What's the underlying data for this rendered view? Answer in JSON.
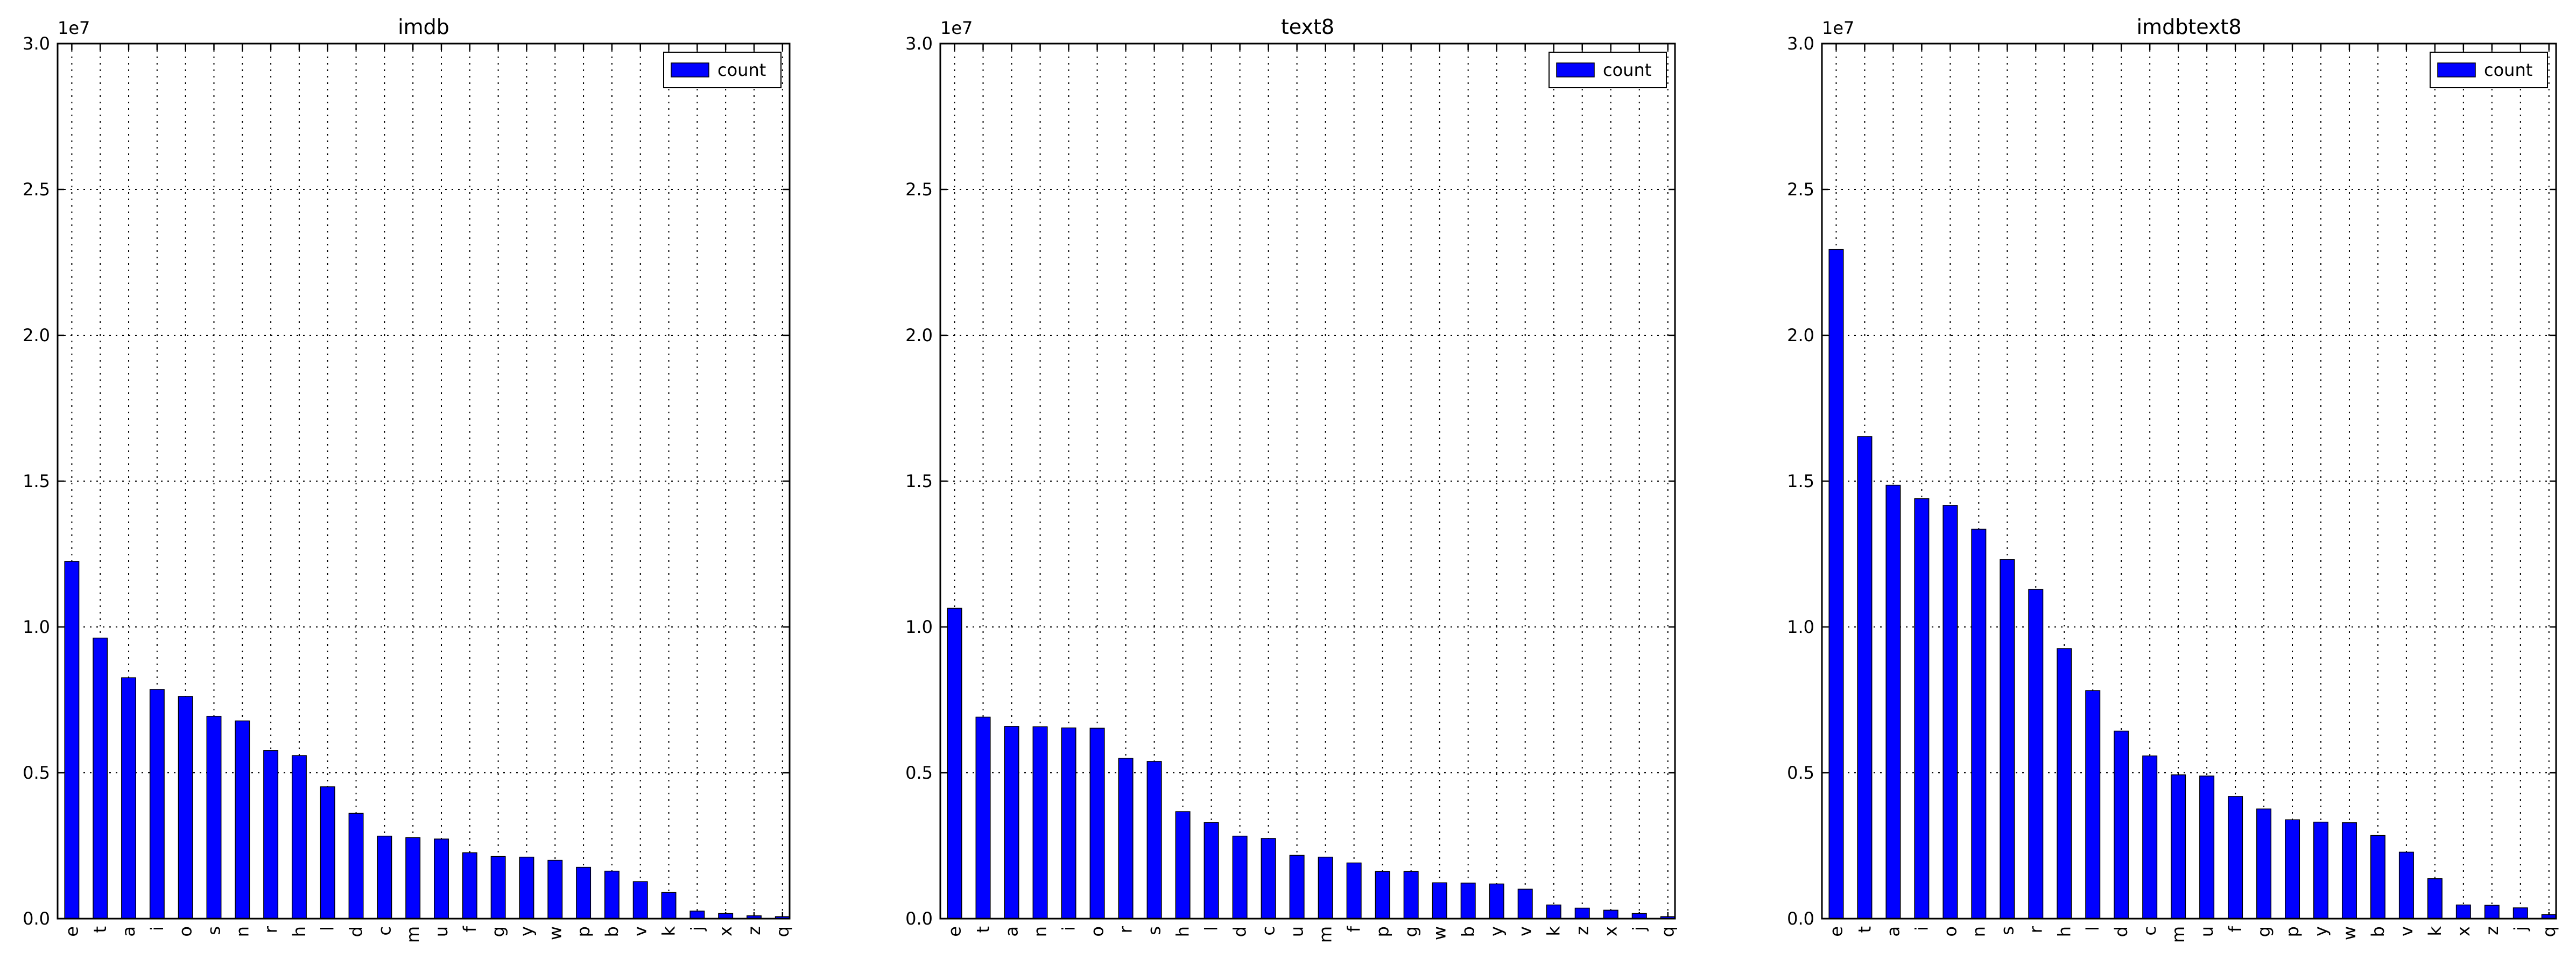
{
  "chart_data": [
    {
      "type": "bar",
      "title": "imdb",
      "y_offset_label": "1e7",
      "y_ticks": [
        0.0,
        0.5,
        1.0,
        1.5,
        2.0,
        2.5,
        3.0
      ],
      "y_tick_labels": [
        "0.0",
        "0.5",
        "1.0",
        "1.5",
        "2.0",
        "2.5",
        "3.0"
      ],
      "ylim": [
        0,
        30000000
      ],
      "grid": true,
      "legend": {
        "position": "top-right"
      },
      "categories": [
        "e",
        "t",
        "a",
        "i",
        "o",
        "s",
        "n",
        "r",
        "h",
        "l",
        "d",
        "c",
        "m",
        "u",
        "f",
        "g",
        "y",
        "w",
        "p",
        "b",
        "v",
        "k",
        "j",
        "x",
        "z",
        "q"
      ],
      "series": [
        {
          "name": "count",
          "color": "#0000ff",
          "values": [
            12250000,
            9620000,
            8260000,
            7860000,
            7620000,
            6940000,
            6780000,
            5760000,
            5590000,
            4520000,
            3610000,
            2830000,
            2780000,
            2730000,
            2260000,
            2130000,
            2110000,
            2000000,
            1760000,
            1630000,
            1270000,
            900000,
            260000,
            180000,
            100000,
            70000
          ]
        }
      ]
    },
    {
      "type": "bar",
      "title": "text8",
      "y_offset_label": "1e7",
      "y_ticks": [
        0.0,
        0.5,
        1.0,
        1.5,
        2.0,
        2.5,
        3.0
      ],
      "y_tick_labels": [
        "0.0",
        "0.5",
        "1.0",
        "1.5",
        "2.0",
        "2.5",
        "3.0"
      ],
      "ylim": [
        0,
        30000000
      ],
      "grid": true,
      "legend": {
        "position": "top-right"
      },
      "categories": [
        "e",
        "t",
        "a",
        "n",
        "i",
        "o",
        "r",
        "s",
        "h",
        "l",
        "d",
        "c",
        "u",
        "m",
        "f",
        "p",
        "g",
        "w",
        "b",
        "y",
        "v",
        "k",
        "z",
        "x",
        "j",
        "q"
      ],
      "series": [
        {
          "name": "count",
          "color": "#0000ff",
          "values": [
            10640000,
            6910000,
            6590000,
            6580000,
            6540000,
            6530000,
            5500000,
            5390000,
            3670000,
            3300000,
            2830000,
            2750000,
            2170000,
            2110000,
            1910000,
            1620000,
            1620000,
            1230000,
            1220000,
            1190000,
            1010000,
            470000,
            360000,
            290000,
            180000,
            70000
          ]
        }
      ]
    },
    {
      "type": "bar",
      "title": "imdbtext8",
      "y_offset_label": "1e7",
      "y_ticks": [
        0.0,
        0.5,
        1.0,
        1.5,
        2.0,
        2.5,
        3.0
      ],
      "y_tick_labels": [
        "0.0",
        "0.5",
        "1.0",
        "1.5",
        "2.0",
        "2.5",
        "3.0"
      ],
      "ylim": [
        0,
        30000000
      ],
      "grid": true,
      "legend": {
        "position": "top-right"
      },
      "categories": [
        "e",
        "t",
        "a",
        "i",
        "o",
        "n",
        "s",
        "r",
        "h",
        "l",
        "d",
        "c",
        "m",
        "u",
        "f",
        "g",
        "p",
        "y",
        "w",
        "b",
        "v",
        "k",
        "x",
        "z",
        "j",
        "q"
      ],
      "series": [
        {
          "name": "count",
          "color": "#0000ff",
          "values": [
            22940000,
            16530000,
            14860000,
            14400000,
            14170000,
            13350000,
            12310000,
            11290000,
            9260000,
            7820000,
            6430000,
            5580000,
            4930000,
            4890000,
            4190000,
            3760000,
            3390000,
            3310000,
            3290000,
            2850000,
            2280000,
            1370000,
            470000,
            460000,
            370000,
            140000
          ]
        }
      ]
    }
  ]
}
